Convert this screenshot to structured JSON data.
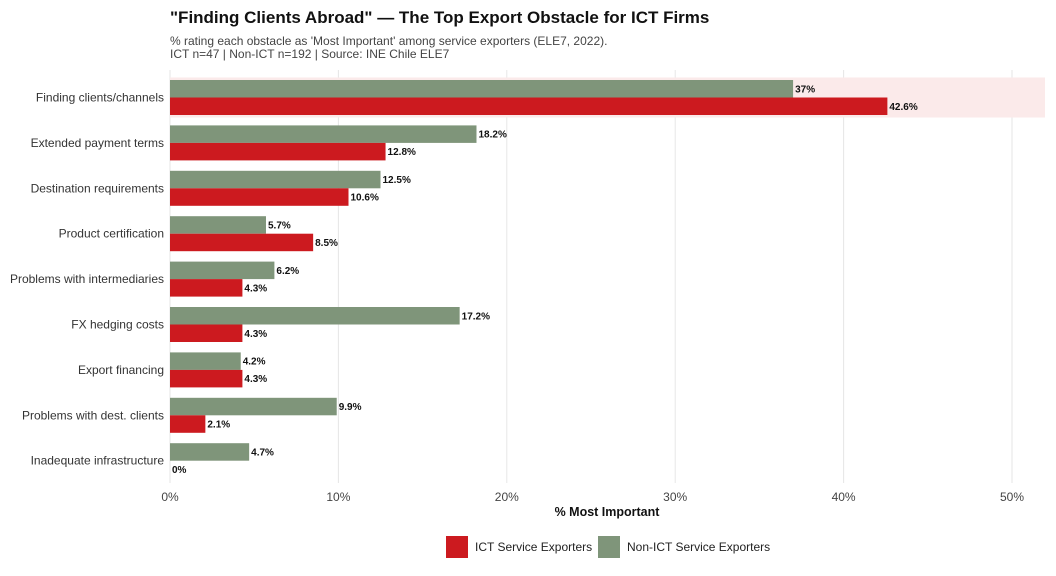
{
  "title": "\"Finding Clients Abroad\" — The Top Export Obstacle for ICT Firms",
  "subtitle1": "% rating each obstacle as 'Most Important' among service exporters (ELE7, 2022).",
  "subtitle2": "ICT n=47 | Non-ICT n=192 | Source: INE Chile ELE7",
  "colors": {
    "ict": "#cc1a1f",
    "non_ict": "#7f957a",
    "highlight": "#fbeaea",
    "grid": "#e6e6e6"
  },
  "chart_data": {
    "type": "bar",
    "orientation": "horizontal",
    "categories": [
      "Finding clients/channels",
      "Extended payment terms",
      "Destination requirements",
      "Product certification",
      "Problems with intermediaries",
      "FX hedging costs",
      "Export financing",
      "Problems with dest. clients",
      "Inadequate infrastructure"
    ],
    "series": [
      {
        "name": "Non-ICT Service Exporters",
        "values": [
          37,
          18.2,
          12.5,
          5.7,
          6.2,
          17.2,
          4.2,
          9.9,
          4.7
        ],
        "labels": [
          "37%",
          "18.2%",
          "12.5%",
          "5.7%",
          "6.2%",
          "17.2%",
          "4.2%",
          "9.9%",
          "4.7%"
        ]
      },
      {
        "name": "ICT Service Exporters",
        "values": [
          42.6,
          12.8,
          10.6,
          8.5,
          4.3,
          4.3,
          4.3,
          2.1,
          0
        ],
        "labels": [
          "42.6%",
          "12.8%",
          "10.6%",
          "8.5%",
          "4.3%",
          "4.3%",
          "4.3%",
          "2.1%",
          "0%"
        ]
      }
    ],
    "highlighted_category": "Finding clients/channels",
    "xlabel": "% Most Important",
    "ylabel": "",
    "xlim": [
      0,
      52
    ],
    "x_ticks": [
      0,
      10,
      20,
      30,
      40,
      50
    ],
    "x_tick_labels": [
      "0%",
      "10%",
      "20%",
      "30%",
      "40%",
      "50%"
    ],
    "grid": true,
    "legend_position": "bottom-center",
    "legend": [
      "ICT Service Exporters",
      "Non-ICT Service Exporters"
    ]
  }
}
